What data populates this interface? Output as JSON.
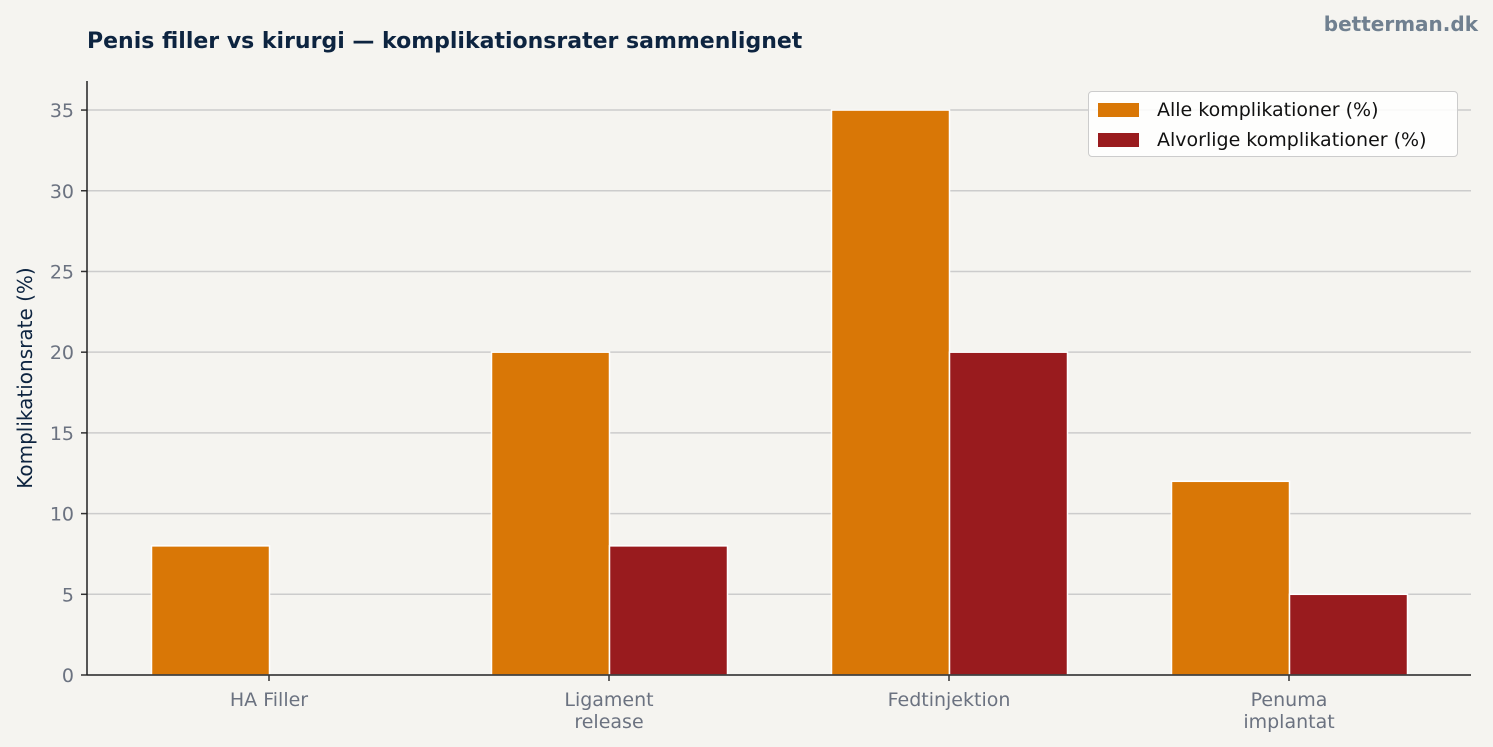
{
  "site": {
    "watermark": "betterman.dk"
  },
  "chart_data": {
    "type": "bar",
    "title": "Penis filler vs kirurgi — komplikationsrater sammenlignet",
    "xlabel": "",
    "ylabel": "Komplikationsrate (%)",
    "categories": [
      [
        "HA Filler"
      ],
      [
        "Ligament",
        "release"
      ],
      [
        "Fedtinjektion"
      ],
      [
        "Penuma",
        "implantat"
      ]
    ],
    "series": [
      {
        "name": "Alle komplikationer (%)",
        "values": [
          8,
          20,
          35,
          12
        ],
        "color": "#d97706"
      },
      {
        "name": "Alvorlige komplikationer (%)",
        "values": [
          0,
          8,
          20,
          5
        ],
        "color": "#991b1e"
      }
    ],
    "ylim": [
      0,
      36.8
    ],
    "yticks": [
      0,
      5,
      10,
      15,
      20,
      25,
      30,
      35
    ],
    "grid": "horizontal",
    "legend_position": "top-right"
  }
}
